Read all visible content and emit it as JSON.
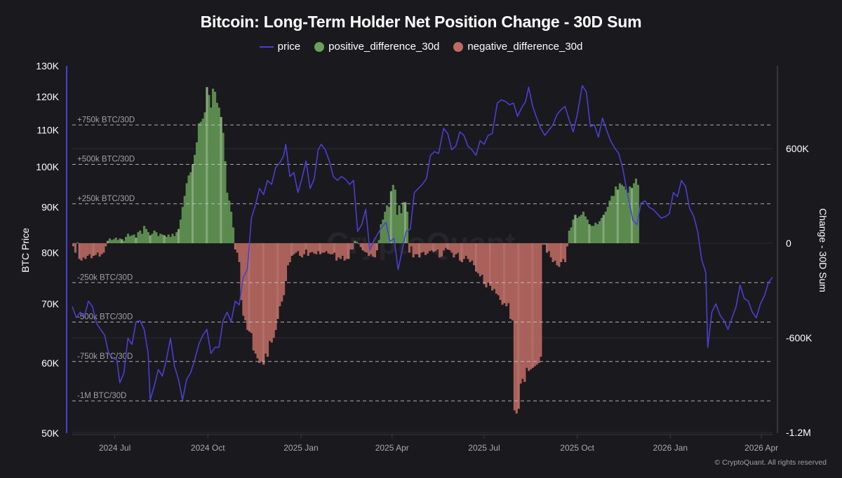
{
  "title": "Bitcoin: Long-Term Holder Net Position Change - 30D Sum",
  "legend": [
    {
      "label": "price",
      "kind": "line",
      "color": "#4b3fcf"
    },
    {
      "label": "positive_difference_30d",
      "kind": "dot",
      "color": "#6aa05c"
    },
    {
      "label": "negative_difference_30d",
      "kind": "dot",
      "color": "#c06a62"
    }
  ],
  "copyright": "© CryptoQuant. All rights reserved",
  "watermark": "CryptoQuant",
  "colors": {
    "background": "#1a191e",
    "price": "#4b3fcf",
    "positive": "#5b8a4f",
    "positive_highlight": "#a9d69b",
    "negative": "#a9615a",
    "negative_highlight": "#e08a82",
    "reference_line": "#c8c8cc",
    "grid": "#2c2b31",
    "left_axis_line": "#4b3fcf",
    "right_axis_line": "#55545a"
  },
  "chart_data": {
    "type": "bar",
    "title": "Bitcoin: Long-Term Holder Net Position Change - 30D Sum",
    "xlabel": "",
    "ylabel_left": "BTC Price",
    "ylabel_right": "Change - 30D Sum",
    "y_left_scale": "log",
    "y_left_range": [
      50000,
      130000
    ],
    "y_left_ticks": [
      {
        "value": 130000,
        "label": "130K"
      },
      {
        "value": 120000,
        "label": "120K"
      },
      {
        "value": 110000,
        "label": "110K"
      },
      {
        "value": 100000,
        "label": "100K"
      },
      {
        "value": 90000,
        "label": "90K"
      },
      {
        "value": 80000,
        "label": "80K"
      },
      {
        "value": 70000,
        "label": "70K"
      },
      {
        "value": 60000,
        "label": "60K"
      },
      {
        "value": 50000,
        "label": "50K"
      }
    ],
    "y_right_range": [
      -1200000,
      1100000
    ],
    "y_right_ticks": [
      {
        "value": 600000,
        "label": "600K"
      },
      {
        "value": 0,
        "label": "0"
      },
      {
        "value": -600000,
        "label": "-600K"
      },
      {
        "value": -1200000,
        "label": "-1.2M"
      }
    ],
    "x_range": [
      "2024-05-20",
      "2026-04-12"
    ],
    "x_ticks": [
      {
        "date": "2024-07-01",
        "label": "2024 Jul"
      },
      {
        "date": "2024-10-01",
        "label": "2024 Oct"
      },
      {
        "date": "2025-01-01",
        "label": "2025 Jan"
      },
      {
        "date": "2025-04-01",
        "label": "2025 Apr"
      },
      {
        "date": "2025-07-01",
        "label": "2025 Jul"
      },
      {
        "date": "2025-10-01",
        "label": "2025 Oct"
      },
      {
        "date": "2026-01-01",
        "label": "2026 Jan"
      },
      {
        "date": "2026-04-01",
        "label": "2026 Apr"
      }
    ],
    "reference_lines": [
      {
        "value": 750000,
        "label": "+750k BTC/30D"
      },
      {
        "value": 500000,
        "label": "+500k BTC/30D"
      },
      {
        "value": 250000,
        "label": "+250k BTC/30D"
      },
      {
        "value": -250000,
        "label": "-250k BTC/30D"
      },
      {
        "value": -500000,
        "label": "-500k BTC/30D"
      },
      {
        "value": -750000,
        "label": "-750k BTC/30D"
      },
      {
        "value": -1000000,
        "label": "-1M BTC/30D"
      }
    ],
    "grid": true,
    "legend_position": "top-center",
    "series": [
      {
        "name": "price",
        "type": "line",
        "axis": "left",
        "x": [
          "2024-05-20",
          "2024-05-24",
          "2024-05-28",
          "2024-06-01",
          "2024-06-05",
          "2024-06-09",
          "2024-06-13",
          "2024-06-17",
          "2024-06-21",
          "2024-06-25",
          "2024-06-29",
          "2024-07-03",
          "2024-07-06",
          "2024-07-10",
          "2024-07-14",
          "2024-07-18",
          "2024-07-22",
          "2024-07-26",
          "2024-07-30",
          "2024-08-03",
          "2024-08-05",
          "2024-08-09",
          "2024-08-13",
          "2024-08-17",
          "2024-08-21",
          "2024-08-25",
          "2024-08-29",
          "2024-09-02",
          "2024-09-06",
          "2024-09-10",
          "2024-09-14",
          "2024-09-18",
          "2024-09-22",
          "2024-09-26",
          "2024-09-30",
          "2024-10-04",
          "2024-10-08",
          "2024-10-12",
          "2024-10-16",
          "2024-10-20",
          "2024-10-24",
          "2024-10-28",
          "2024-11-01",
          "2024-11-05",
          "2024-11-09",
          "2024-11-13",
          "2024-11-17",
          "2024-11-21",
          "2024-11-25",
          "2024-11-29",
          "2024-12-03",
          "2024-12-07",
          "2024-12-11",
          "2024-12-15",
          "2024-12-17",
          "2024-12-21",
          "2024-12-25",
          "2024-12-29",
          "2025-01-02",
          "2025-01-06",
          "2025-01-10",
          "2025-01-14",
          "2025-01-18",
          "2025-01-21",
          "2025-01-25",
          "2025-01-29",
          "2025-02-02",
          "2025-02-06",
          "2025-02-10",
          "2025-02-14",
          "2025-02-18",
          "2025-02-22",
          "2025-02-26",
          "2025-03-02",
          "2025-03-06",
          "2025-03-10",
          "2025-03-14",
          "2025-03-18",
          "2025-03-22",
          "2025-03-26",
          "2025-03-30",
          "2025-04-03",
          "2025-04-07",
          "2025-04-11",
          "2025-04-15",
          "2025-04-19",
          "2025-04-23",
          "2025-04-27",
          "2025-05-01",
          "2025-05-05",
          "2025-05-09",
          "2025-05-13",
          "2025-05-17",
          "2025-05-22",
          "2025-05-26",
          "2025-05-30",
          "2025-06-03",
          "2025-06-07",
          "2025-06-11",
          "2025-06-15",
          "2025-06-19",
          "2025-06-23",
          "2025-06-27",
          "2025-07-01",
          "2025-07-05",
          "2025-07-09",
          "2025-07-14",
          "2025-07-18",
          "2025-07-22",
          "2025-07-26",
          "2025-07-30",
          "2025-08-03",
          "2025-08-07",
          "2025-08-11",
          "2025-08-14",
          "2025-08-18",
          "2025-08-22",
          "2025-08-26",
          "2025-08-30",
          "2025-09-03",
          "2025-09-07",
          "2025-09-11",
          "2025-09-15",
          "2025-09-19",
          "2025-09-23",
          "2025-09-27",
          "2025-10-01",
          "2025-10-06",
          "2025-10-10",
          "2025-10-14",
          "2025-10-18",
          "2025-10-22",
          "2025-10-26",
          "2025-10-30",
          "2025-11-03",
          "2025-11-07",
          "2025-11-11",
          "2025-11-15",
          "2025-11-19",
          "2025-11-21",
          "2025-11-25",
          "2025-11-29",
          "2025-12-03",
          "2025-12-07",
          "2025-12-11",
          "2025-12-15",
          "2025-12-19",
          "2025-12-23",
          "2025-12-27",
          "2025-12-31",
          "2026-01-04",
          "2026-01-08",
          "2026-01-12",
          "2026-01-16",
          "2026-01-20",
          "2026-01-24",
          "2026-01-28",
          "2026-02-01",
          "2026-02-05",
          "2026-02-07",
          "2026-02-11",
          "2026-02-15",
          "2026-02-19",
          "2026-02-23",
          "2026-02-27",
          "2026-03-03",
          "2026-03-07",
          "2026-03-11",
          "2026-03-15",
          "2026-03-19",
          "2026-03-23",
          "2026-03-27",
          "2026-03-31",
          "2026-04-04",
          "2026-04-08",
          "2026-04-12"
        ],
        "values": [
          69500,
          67500,
          68500,
          67800,
          70500,
          69500,
          66500,
          65500,
          64500,
          61500,
          60800,
          60500,
          57000,
          58500,
          64000,
          63000,
          66800,
          67000,
          65500,
          61500,
          54500,
          56500,
          59000,
          58000,
          60500,
          64000,
          59500,
          57500,
          54500,
          57500,
          58500,
          60500,
          63000,
          64500,
          65500,
          61500,
          62500,
          62500,
          67000,
          68500,
          66800,
          70500,
          69800,
          75000,
          76500,
          87500,
          90500,
          94500,
          93000,
          96500,
          95500,
          99800,
          101000,
          103000,
          106000,
          97500,
          98500,
          93500,
          97000,
          101500,
          94500,
          96800,
          104500,
          106000,
          104500,
          101500,
          97500,
          96500,
          97500,
          96800,
          95500,
          96500,
          84500,
          86000,
          89500,
          80500,
          82500,
          84000,
          85500,
          86500,
          82300,
          83000,
          76500,
          80500,
          84500,
          85000,
          93500,
          94500,
          95500,
          97000,
          103000,
          104000,
          103500,
          110500,
          109000,
          104500,
          105500,
          109500,
          108500,
          105500,
          104500,
          103000,
          107000,
          106000,
          108500,
          109000,
          118000,
          119000,
          118500,
          117500,
          118000,
          114000,
          116500,
          118500,
          123000,
          117000,
          113500,
          110500,
          108500,
          110000,
          111500,
          114500,
          116000,
          117000,
          113000,
          109500,
          114500,
          123500,
          121500,
          111000,
          111500,
          108000,
          113500,
          110000,
          107000,
          105000,
          103500,
          99500,
          94000,
          91500,
          87000,
          86000,
          91000,
          91500,
          90000,
          89500,
          88500,
          87500,
          87800,
          88500,
          93500,
          92500,
          96500,
          95000,
          89800,
          88000,
          84500,
          78500,
          76000,
          62500,
          68500,
          70000,
          68000,
          67000,
          65500,
          67500,
          69500,
          73500,
          71000,
          70500,
          68500,
          67500,
          70000,
          71500,
          74000,
          75000
        ]
      },
      {
        "name": "positive_difference_30d / negative_difference_30d",
        "type": "bar",
        "axis": "right",
        "note": "single net series; positive values are green (positive_difference_30d), negative values are red (negative_difference_30d)",
        "x_start": "2024-05-20",
        "step_days": 2,
        "values": [
          -20000,
          -60000,
          5000,
          -100000,
          -110000,
          -90000,
          -100000,
          -80000,
          -70000,
          -95000,
          -80000,
          -75000,
          -60000,
          -85000,
          -70000,
          -60000,
          -20000,
          15000,
          30000,
          20000,
          25000,
          35000,
          20000,
          30000,
          25000,
          15000,
          40000,
          60000,
          45000,
          50000,
          55000,
          35000,
          70000,
          80000,
          60000,
          110000,
          90000,
          70000,
          50000,
          60000,
          80000,
          70000,
          45000,
          60000,
          55000,
          50000,
          40000,
          55000,
          40000,
          60000,
          45000,
          70000,
          90000,
          150000,
          230000,
          300000,
          380000,
          430000,
          450000,
          500000,
          560000,
          640000,
          760000,
          770000,
          790000,
          830000,
          990000,
          940000,
          860000,
          980000,
          960000,
          890000,
          860000,
          800000,
          700000,
          520000,
          320000,
          270000,
          200000,
          100000,
          -40000,
          -60000,
          -120000,
          -360000,
          -460000,
          -490000,
          -550000,
          -560000,
          -570000,
          -680000,
          -700000,
          -730000,
          -760000,
          -750000,
          -770000,
          -700000,
          -720000,
          -620000,
          -630000,
          -600000,
          -550000,
          -480000,
          -400000,
          -370000,
          -330000,
          -240000,
          -140000,
          -120000,
          -80000,
          -70000,
          -60000,
          -50000,
          -80000,
          -90000,
          -70000,
          -40000,
          -80000,
          -60000,
          -55000,
          -65000,
          -70000,
          -50000,
          -70000,
          -60000,
          -60000,
          -50000,
          -65000,
          -70000,
          -70000,
          -60000,
          -110000,
          -90000,
          -100000,
          -80000,
          -110000,
          -100000,
          -100000,
          -40000,
          -40000,
          15000,
          10000,
          -5000,
          -25000,
          -45000,
          -55000,
          -60000,
          -80000,
          -70000,
          -85000,
          -90000,
          -45000,
          20000,
          120000,
          150000,
          200000,
          240000,
          230000,
          330000,
          370000,
          340000,
          180000,
          240000,
          190000,
          260000,
          260000,
          200000,
          -60000,
          -20000,
          -90000,
          -70000,
          -70000,
          -90000,
          -60000,
          -55000,
          -75000,
          -65000,
          -50000,
          -45000,
          -55000,
          -50000,
          -40000,
          -90000,
          -85000,
          -45000,
          -30000,
          -40000,
          -45000,
          -60000,
          -90000,
          -70000,
          -60000,
          -110000,
          -120000,
          -100000,
          -80000,
          -100000,
          -120000,
          -110000,
          -140000,
          -180000,
          -190000,
          -210000,
          -200000,
          -260000,
          -280000,
          -250000,
          -270000,
          -300000,
          -290000,
          -320000,
          -330000,
          -360000,
          -390000,
          -380000,
          -400000,
          -380000,
          -480000,
          -490000,
          -1060000,
          -1080000,
          -1050000,
          -890000,
          -860000,
          -880000,
          -790000,
          -810000,
          -800000,
          -790000,
          -780000,
          -770000,
          -760000,
          -720000,
          -10000,
          -10000,
          -60000,
          -50000,
          -90000,
          -120000,
          -110000,
          -140000,
          -150000,
          -120000,
          -100000,
          -120000,
          -20000,
          80000,
          100000,
          150000,
          180000,
          160000,
          170000,
          180000,
          200000,
          170000,
          150000,
          120000,
          110000,
          110000,
          130000,
          120000,
          140000,
          160000,
          180000,
          200000,
          230000,
          270000,
          300000,
          300000,
          360000,
          340000,
          380000,
          370000,
          360000,
          340000,
          320000,
          360000,
          350000,
          380000,
          410000,
          370000
        ]
      }
    ]
  }
}
